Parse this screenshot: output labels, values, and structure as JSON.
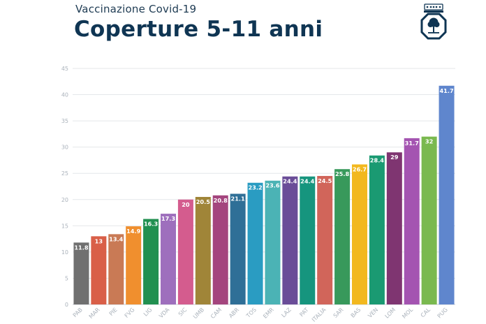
{
  "header": {
    "subtitle": "Vaccinazione Covid-19",
    "title": "Coperture 5-11 anni"
  },
  "logo_icon": "regional-coat-of-arms-icon",
  "chart_data": {
    "type": "bar",
    "title": "Coperture 5-11 anni",
    "xlabel": "",
    "ylabel": "",
    "ylim": [
      0,
      45
    ],
    "yticks": [
      0,
      5,
      10,
      15,
      20,
      25,
      30,
      35,
      40,
      45
    ],
    "grid": true,
    "categories": [
      "PAB",
      "MAR",
      "PIE",
      "FVG",
      "LIG",
      "VDA",
      "SIC",
      "UMB",
      "CAM",
      "ABR",
      "TOS",
      "EMR",
      "LAZ",
      "PAT",
      "ITALIA",
      "SAR",
      "BAS",
      "VEN",
      "LOM",
      "MOL",
      "CAL",
      "PUG"
    ],
    "values": [
      11.8,
      13,
      13.4,
      14.9,
      16.3,
      17.3,
      20,
      20.5,
      20.8,
      21.1,
      23.2,
      23.6,
      24.4,
      24.4,
      24.5,
      25.8,
      26.7,
      28.4,
      29,
      31.7,
      32,
      41.7
    ],
    "value_labels": [
      "11.8",
      "13",
      "13.4",
      "14.9",
      "16.3",
      "17.3",
      "20",
      "20.5",
      "20.8",
      "21.1",
      "23.2",
      "23.6",
      "24.4",
      "24.4",
      "24.5",
      "25.8",
      "26.7",
      "28.4",
      "29",
      "31.7",
      "32",
      "41.7"
    ],
    "colors": [
      "#707070",
      "#d95f48",
      "#c97a55",
      "#f08f2e",
      "#219050",
      "#9e6fbd",
      "#d45c8e",
      "#a08538",
      "#a4457e",
      "#2f6f97",
      "#2a9cc2",
      "#4bb3b5",
      "#6a4d98",
      "#16957e",
      "#d1655a",
      "#38995b",
      "#f2b81f",
      "#1a9a72",
      "#7f3571",
      "#a454b1",
      "#7ab94f",
      "#5f86cd"
    ]
  }
}
